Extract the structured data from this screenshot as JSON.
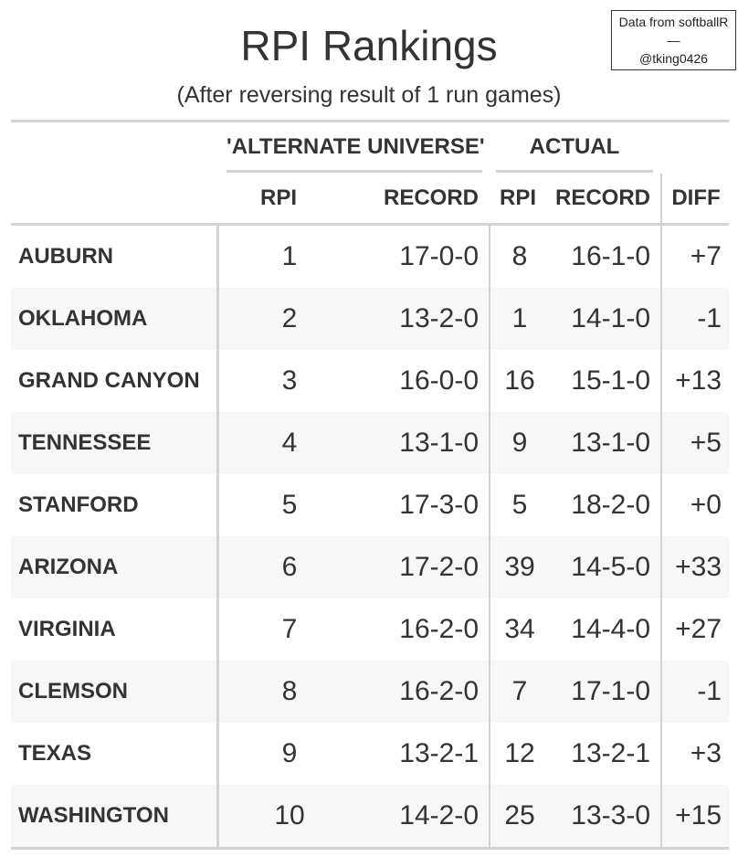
{
  "title": "RPI Rankings",
  "subtitle": "(After reversing result of 1 run games)",
  "credit": {
    "line1": "Data from softballR",
    "line2": "—",
    "line3": "@tking0426"
  },
  "spanners": {
    "alternate": "'ALTERNATE UNIVERSE'",
    "actual": "ACTUAL"
  },
  "columns": {
    "alt_rpi": "RPI",
    "alt_record": "RECORD",
    "act_rpi": "RPI",
    "act_record": "RECORD",
    "diff": "DIFF"
  },
  "chart_data": {
    "type": "table",
    "title": "RPI Rankings",
    "subtitle": "(After reversing result of 1 run games)",
    "rows": [
      {
        "team": "AUBURN",
        "alt_rpi": "1",
        "alt_record": "17-0-0",
        "act_rpi": "8",
        "act_record": "16-1-0",
        "diff": "+7"
      },
      {
        "team": "OKLAHOMA",
        "alt_rpi": "2",
        "alt_record": "13-2-0",
        "act_rpi": "1",
        "act_record": "14-1-0",
        "diff": "-1"
      },
      {
        "team": "GRAND CANYON",
        "alt_rpi": "3",
        "alt_record": "16-0-0",
        "act_rpi": "16",
        "act_record": "15-1-0",
        "diff": "+13"
      },
      {
        "team": "TENNESSEE",
        "alt_rpi": "4",
        "alt_record": "13-1-0",
        "act_rpi": "9",
        "act_record": "13-1-0",
        "diff": "+5"
      },
      {
        "team": "STANFORD",
        "alt_rpi": "5",
        "alt_record": "17-3-0",
        "act_rpi": "5",
        "act_record": "18-2-0",
        "diff": "+0"
      },
      {
        "team": "ARIZONA",
        "alt_rpi": "6",
        "alt_record": "17-2-0",
        "act_rpi": "39",
        "act_record": "14-5-0",
        "diff": "+33"
      },
      {
        "team": "VIRGINIA",
        "alt_rpi": "7",
        "alt_record": "16-2-0",
        "act_rpi": "34",
        "act_record": "14-4-0",
        "diff": "+27"
      },
      {
        "team": "CLEMSON",
        "alt_rpi": "8",
        "alt_record": "16-2-0",
        "act_rpi": "7",
        "act_record": "17-1-0",
        "diff": "-1"
      },
      {
        "team": "TEXAS",
        "alt_rpi": "9",
        "alt_record": "13-2-1",
        "act_rpi": "12",
        "act_record": "13-2-1",
        "diff": "+3"
      },
      {
        "team": "WASHINGTON",
        "alt_rpi": "10",
        "alt_record": "14-2-0",
        "act_rpi": "25",
        "act_record": "13-3-0",
        "diff": "+15"
      }
    ]
  }
}
